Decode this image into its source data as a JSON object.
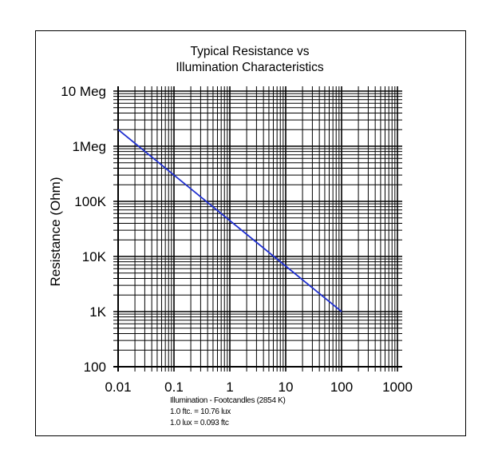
{
  "chart_data": {
    "type": "line",
    "title": [
      "Typical Resistance vs",
      "Illumination Characteristics"
    ],
    "xlabel": "Illumination - Footcandles (2854 K)",
    "ylabel": "Resistance (Ohm)",
    "x_scale": "log",
    "y_scale": "log",
    "xlim": [
      0.01,
      1000
    ],
    "ylim": [
      100,
      10000000
    ],
    "grid": true,
    "x_ticks": [
      {
        "value": 0.01,
        "label": "0.01"
      },
      {
        "value": 0.1,
        "label": "0.1"
      },
      {
        "value": 1,
        "label": "1"
      },
      {
        "value": 10,
        "label": "10"
      },
      {
        "value": 100,
        "label": "100"
      },
      {
        "value": 1000,
        "label": "1000"
      }
    ],
    "y_ticks": [
      {
        "value": 10000000,
        "label": "10 Meg"
      },
      {
        "value": 1000000,
        "label": "1Meg"
      },
      {
        "value": 100000,
        "label": "100K"
      },
      {
        "value": 10000,
        "label": "10K"
      },
      {
        "value": 1000,
        "label": "1K"
      },
      {
        "value": 100,
        "label": "100"
      }
    ],
    "series": [
      {
        "name": "Resistance",
        "color": "#1f2fd0",
        "x": [
          0.01,
          100
        ],
        "y": [
          2000000,
          1000
        ]
      }
    ],
    "notes": [
      "Illumination - Footcandles (2854 K)",
      "1.0 ftc. = 10.76 lux",
      "1.0 lux = 0.093 ftc"
    ]
  }
}
